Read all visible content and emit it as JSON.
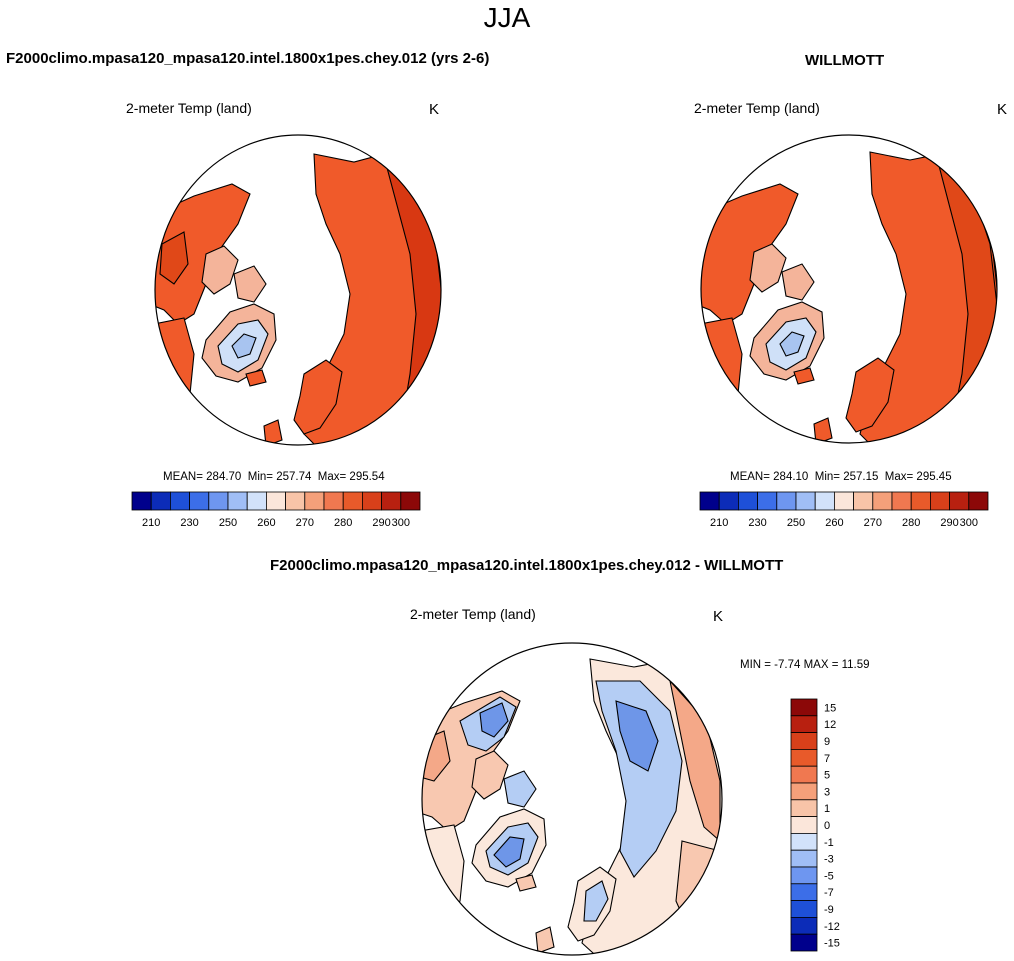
{
  "season": "JJA",
  "top_left": {
    "case_title": "F2000climo.mpasa120_mpasa120.intel.1800x1pes.chey.012 (yrs 2-6)",
    "panel_title": "2-meter Temp (land)",
    "units": "K",
    "stats": {
      "mean_label": "MEAN=",
      "mean": "284.70",
      "min_label": "Min=",
      "min": "257.74",
      "max_label": "Max=",
      "max": "295.54"
    }
  },
  "top_right": {
    "case_title": "WILLMOTT",
    "panel_title": "2-meter Temp (land)",
    "units": "K",
    "stats": {
      "mean_label": "MEAN=",
      "mean": "284.10",
      "min_label": "Min=",
      "min": "257.15",
      "max_label": "Max=",
      "max": "295.45"
    }
  },
  "bottom": {
    "case_title": "F2000climo.mpasa120_mpasa120.intel.1800x1pes.chey.012 - WILLMOTT",
    "panel_title": "2-meter Temp (land)",
    "units": "K",
    "minmax": "MIN = -7.74 MAX = 11.59"
  },
  "abs_colorbar": {
    "colors": [
      "#00008c",
      "#0c2cb8",
      "#1e50d8",
      "#3c6ee8",
      "#6e96f0",
      "#a0bef6",
      "#d2e2fa",
      "#fbe6da",
      "#f8c4a8",
      "#f5a07a",
      "#f07850",
      "#e85a2a",
      "#d8401a",
      "#b82010",
      "#8c0808"
    ],
    "tick_labels": [
      "210",
      "230",
      "250",
      "260",
      "270",
      "280",
      "290",
      "300"
    ]
  },
  "diff_colorbar": {
    "colors": [
      "#8c0808",
      "#b82010",
      "#d8401a",
      "#e85a2a",
      "#f07850",
      "#f5a07a",
      "#f8c4a8",
      "#fbe6da",
      "#d2e2fa",
      "#a0bef6",
      "#6e96f0",
      "#3c6ee8",
      "#1e50d8",
      "#0c2cb8",
      "#00008c"
    ],
    "tick_labels": [
      "15",
      "12",
      "9",
      "7",
      "5",
      "3",
      "1",
      "0",
      "-1",
      "-3",
      "-5",
      "-7",
      "-9",
      "-12",
      "-15"
    ]
  },
  "map_colors": {
    "warm": "#f05a2a",
    "warm_dark": "#e04818",
    "warm_deep": "#d83812",
    "light_pink": "#f4b49a",
    "cold_light": "#cfe0f8",
    "cold_mid": "#a8c4f0",
    "diff_pos": "#f8c8b0",
    "diff_pos2": "#f4a888",
    "diff_neg": "#b4cdf4",
    "diff_neg2": "#6e96e8",
    "diff_neutral": "#fbe8dc"
  }
}
